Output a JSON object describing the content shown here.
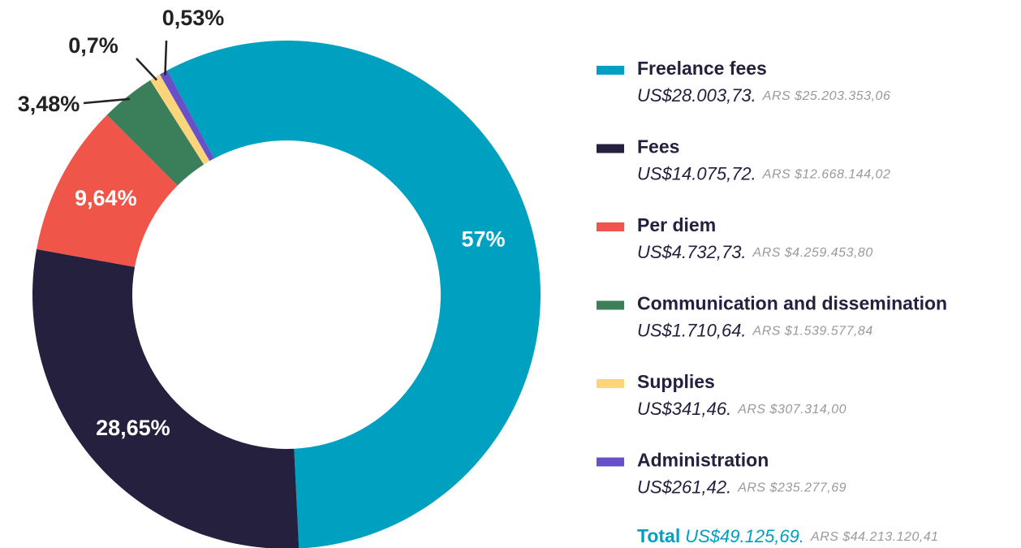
{
  "chart_data": {
    "type": "pie",
    "categories": [
      "Freelance fees",
      "Fees",
      "Per diem",
      "Communication and dissemination",
      "Supplies",
      "Administration"
    ],
    "values": [
      57,
      28.65,
      9.64,
      3.48,
      0.7,
      0.53
    ],
    "value_labels": [
      "57%",
      "28,65%",
      "9,64%",
      "3,48%",
      "0,7%",
      "0,53%"
    ],
    "colors": [
      "#00a0c1",
      "#24203d",
      "#f0554a",
      "#3b7f5a",
      "#fcd57a",
      "#6750c8"
    ],
    "usd": [
      "US$28.003,73.",
      "US$14.075,72.",
      "US$4.732,73.",
      "US$1.710,64.",
      "US$341,46.",
      "US$261,42."
    ],
    "ars": [
      "ARS $25.203.353,06",
      "ARS $12.668.144,02",
      "ARS $4.259.453,80",
      "ARS $1.539.577,84",
      "ARS $307.314,00",
      "ARS $235.277,69"
    ],
    "total": {
      "label": "Total",
      "usd": "US$49.125,69.",
      "ars": "ARS $44.213.120,41"
    }
  }
}
